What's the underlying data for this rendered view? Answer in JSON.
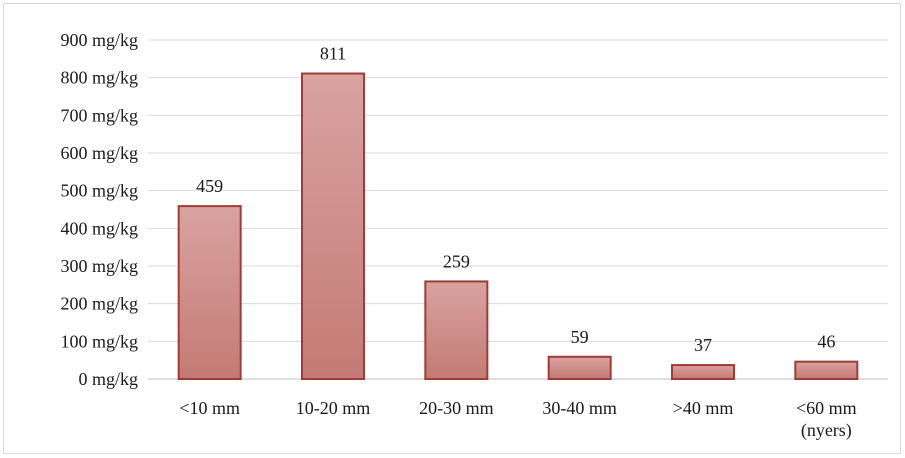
{
  "chart_data": {
    "type": "bar",
    "categories": [
      [
        "<10 mm"
      ],
      [
        "10-20 mm"
      ],
      [
        "20-30 mm"
      ],
      [
        "30-40 mm"
      ],
      [
        ">40 mm"
      ],
      [
        "<60 mm",
        "(nyers)"
      ]
    ],
    "values": [
      459,
      811,
      259,
      59,
      37,
      46
    ],
    "data_labels": [
      "459",
      "811",
      "259",
      "59",
      "37",
      "46"
    ],
    "y_ticks": [
      "0 mg/kg",
      "100 mg/kg",
      "200 mg/kg",
      "300 mg/kg",
      "400 mg/kg",
      "500 mg/kg",
      "600 mg/kg",
      "700 mg/kg",
      "800 mg/kg",
      "900 mg/kg"
    ],
    "ylim": [
      0,
      900
    ],
    "y_step": 100,
    "grid": true,
    "legend": "none",
    "colors": {
      "bar_top": "#d9a3a0",
      "bar_bottom": "#c47a74",
      "bar_border": "#a03c35",
      "grid": "#d9d9d9"
    }
  }
}
